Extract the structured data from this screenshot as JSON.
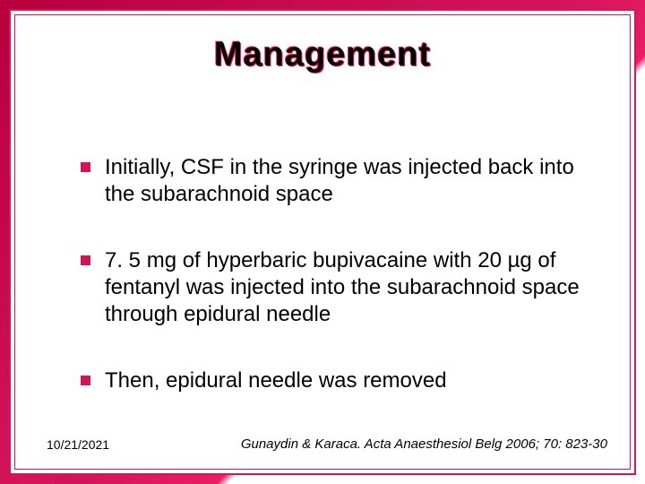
{
  "slide": {
    "title": "Management",
    "bullets": [
      {
        "text": "Initially, CSF in the syringe was injected back into the subarachnoid space"
      },
      {
        "text": "7. 5 mg of hyperbaric bupivacaine with 20 µg of fentanyl was injected into the subarachnoid space through epidural needle"
      },
      {
        "text": "Then, epidural needle was removed"
      }
    ],
    "footer": {
      "date": "10/21/2021",
      "citation": "Gunaydin & Karaca. Acta Anaesthesiol Belg 2006; 70: 823-30"
    }
  },
  "style": {
    "background_gradient_from": "#b8003d",
    "background_gradient_mid": "#d4145a",
    "background_gradient_to": "#ffffff",
    "accent_color": "#d4145a",
    "bullet_color": "#d4145a",
    "title_color": "#000000",
    "title_outline": "#e91e63",
    "text_color": "#000000",
    "title_fontsize": 38,
    "body_fontsize": 24,
    "footer_fontsize": 14,
    "citation_fontsize": 15,
    "slide_width": 720,
    "slide_height": 540
  }
}
